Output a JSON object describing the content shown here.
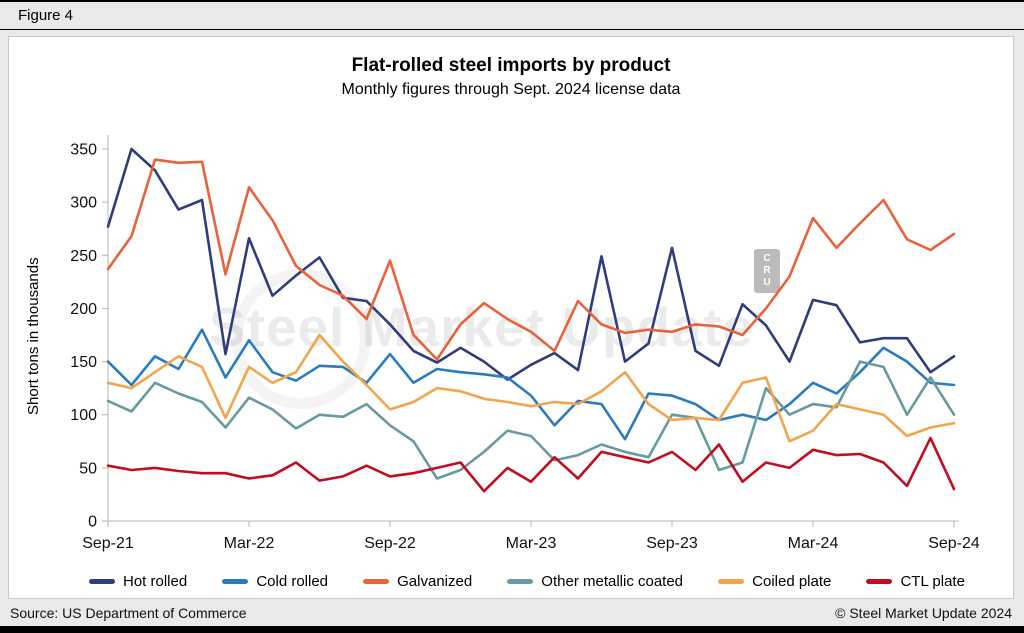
{
  "header": {
    "figure_label": "Figure 4"
  },
  "footer": {
    "source": "Source: US Department of Commerce",
    "copyright": "© Steel Market Update 2024"
  },
  "watermark": {
    "text": "Steel Market Update",
    "badge": "CRU"
  },
  "chart_data": {
    "type": "line",
    "title": "Flat-rolled steel imports by product",
    "subtitle": "Monthly figures through Sept. 2024 license data",
    "ylabel": "Short tons in thousands",
    "ylim": [
      0,
      350
    ],
    "ytick_interval": 50,
    "x_tick_every": 6,
    "x_tick_labels": [
      "Sep-21",
      "Mar-22",
      "Sep-22",
      "Mar-23",
      "Sep-23",
      "Mar-24",
      "Sep-24"
    ],
    "grid": false,
    "legend_position": "bottom",
    "x": [
      "Sep-21",
      "Oct-21",
      "Nov-21",
      "Dec-21",
      "Jan-22",
      "Feb-22",
      "Mar-22",
      "Apr-22",
      "May-22",
      "Jun-22",
      "Jul-22",
      "Aug-22",
      "Sep-22",
      "Oct-22",
      "Nov-22",
      "Dec-22",
      "Jan-23",
      "Feb-23",
      "Mar-23",
      "Apr-23",
      "May-23",
      "Jun-23",
      "Jul-23",
      "Aug-23",
      "Sep-23",
      "Oct-23",
      "Nov-23",
      "Dec-23",
      "Jan-24",
      "Feb-24",
      "Mar-24",
      "Apr-24",
      "May-24",
      "Jun-24",
      "Jul-24",
      "Aug-24",
      "Sep-24"
    ],
    "series": [
      {
        "name": "Hot rolled",
        "color": "#2f3d7d",
        "values": [
          277,
          350,
          330,
          293,
          302,
          157,
          266,
          212,
          231,
          248,
          210,
          207,
          185,
          160,
          149,
          163,
          150,
          133,
          147,
          158,
          142,
          249,
          150,
          167,
          257,
          160,
          146,
          204,
          184,
          150,
          208,
          203,
          168,
          172,
          172,
          140,
          155
        ]
      },
      {
        "name": "Cold rolled",
        "color": "#2b7cbd",
        "values": [
          150,
          128,
          155,
          143,
          180,
          135,
          170,
          140,
          132,
          146,
          145,
          130,
          157,
          130,
          143,
          140,
          138,
          135,
          118,
          90,
          113,
          110,
          77,
          120,
          118,
          110,
          95,
          100,
          95,
          110,
          130,
          120,
          140,
          163,
          150,
          130,
          128
        ]
      },
      {
        "name": "Galvanized",
        "color": "#e8623a",
        "values": [
          237,
          268,
          340,
          337,
          338,
          232,
          314,
          283,
          240,
          222,
          212,
          190,
          245,
          175,
          152,
          185,
          205,
          190,
          178,
          160,
          207,
          185,
          177,
          180,
          178,
          185,
          183,
          175,
          200,
          230,
          285,
          257,
          280,
          302,
          265,
          255,
          270
        ]
      },
      {
        "name": "Other metallic coated",
        "color": "#669ba0",
        "values": [
          113,
          103,
          130,
          120,
          112,
          88,
          116,
          105,
          87,
          100,
          98,
          110,
          90,
          75,
          40,
          48,
          65,
          85,
          80,
          57,
          62,
          72,
          65,
          60,
          100,
          97,
          48,
          55,
          125,
          100,
          110,
          107,
          150,
          145,
          100,
          135,
          100
        ]
      },
      {
        "name": "Coiled plate",
        "color": "#f3a44c",
        "values": [
          130,
          125,
          140,
          155,
          145,
          97,
          145,
          130,
          140,
          175,
          150,
          128,
          105,
          112,
          125,
          122,
          115,
          112,
          108,
          112,
          110,
          122,
          140,
          110,
          95,
          97,
          95,
          130,
          135,
          75,
          85,
          110,
          105,
          100,
          80,
          88,
          92
        ]
      },
      {
        "name": "CTL plate",
        "color": "#c00d21",
        "values": [
          52,
          48,
          50,
          47,
          45,
          45,
          40,
          43,
          55,
          38,
          42,
          52,
          42,
          45,
          50,
          55,
          28,
          50,
          37,
          60,
          40,
          65,
          60,
          55,
          65,
          48,
          72,
          37,
          55,
          50,
          67,
          62,
          63,
          55,
          33,
          78,
          30
        ]
      }
    ]
  }
}
